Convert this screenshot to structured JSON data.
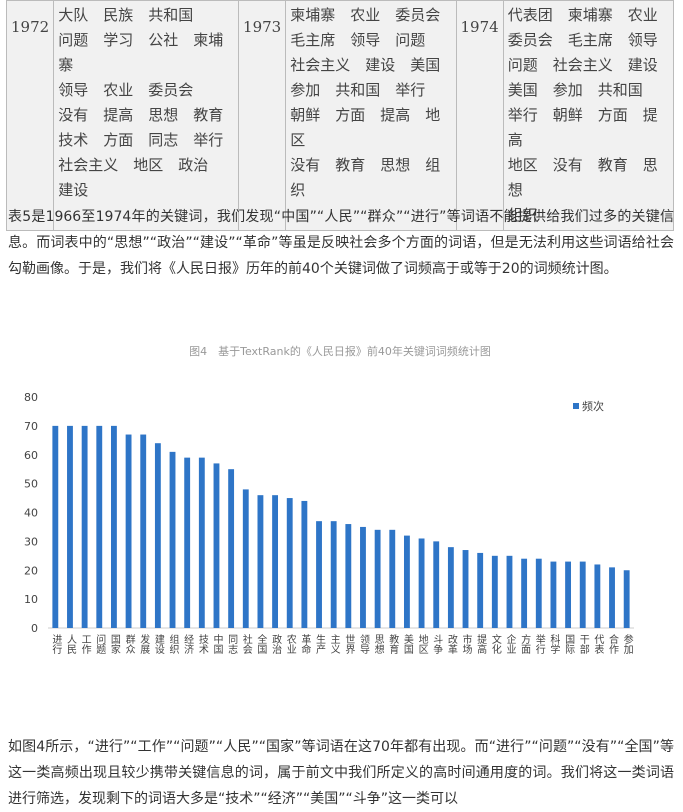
{
  "table": {
    "cells": [
      {
        "year": "1972",
        "lines": [
          "大队　民族　共和国",
          "问题　学习　公社　柬埔寨",
          "领导　农业　委员会",
          "没有　提高　思想　教育",
          "技术　方面　同志　举行",
          "社会主义　地区　政治",
          "建设"
        ]
      },
      {
        "year": "1973",
        "lines": [
          "柬埔寨　农业　委员会",
          "毛主席　领导　问题",
          "社会主义　建设　美国",
          "参加　共和国　举行",
          "朝鲜　方面　提高　地区",
          "没有　教育　思想　组织"
        ]
      },
      {
        "year": "1974",
        "lines": [
          "代表团　柬埔寨　农业",
          "委员会　毛主席　领导",
          "问题　社会主义　建设",
          "美国　参加　共和国",
          "举行　朝鲜　方面　提高",
          "地区　没有　教育　思想",
          "组织"
        ]
      }
    ]
  },
  "paragraph1": "表5是1966至1974年的关键词，我们发现“中国”“人民”“群众”“进行”等词语不能提供给我们过多的关键信息。而词表中的“思想”“政治”“建设”“革命”等虽是反映社会多个方面的词语，但是无法利用这些词语给社会勾勒画像。于是，我们将《人民日报》历年的前40个关键词做了词频高于或等于20的词频统计图。",
  "chart_data": {
    "type": "bar",
    "title": "图4　基于TextRank的《人民日报》前40年关键词词频统计图",
    "categories": [
      "进行",
      "人民",
      "工作",
      "问题",
      "国家",
      "群众",
      "发展",
      "建设",
      "组织",
      "经济",
      "技术",
      "中国",
      "同志",
      "社会",
      "全国",
      "政治",
      "农业",
      "革命",
      "生产",
      "主义",
      "世界",
      "领导",
      "思想",
      "教育",
      "美国",
      "地区",
      "斗争",
      "改革",
      "市场",
      "提高",
      "文化",
      "企业",
      "方面",
      "举行",
      "科学",
      "国际",
      "干部",
      "代表",
      "合作",
      "参加"
    ],
    "series": [
      {
        "name": "频次",
        "color": "#2e75c7",
        "values": [
          70,
          70,
          70,
          70,
          70,
          67,
          67,
          64,
          61,
          59,
          59,
          57,
          55,
          48,
          46,
          46,
          45,
          44,
          37,
          37,
          36,
          35,
          34,
          34,
          32,
          31,
          30,
          28,
          27,
          26,
          25,
          25,
          24,
          24,
          23,
          23,
          23,
          22,
          21,
          20
        ]
      }
    ],
    "ylim": [
      0,
      80
    ],
    "yticks": [
      0,
      10,
      20,
      30,
      40,
      50,
      60,
      70,
      80
    ],
    "legend": "upper right"
  },
  "paragraph2": "如图4所示，“进行”“工作”“问题”“人民”“国家”等词语在这70年都有出现。而“进行”“问题”“没有”“全国”等这一类高频出现且较少携带关键信息的词，属于前文中我们所定义的高时间通用度的词。我们将这一类词语进行筛选，发现剩下的词语大多是“技术”“经济”“美国”“斗争”这一类可以"
}
